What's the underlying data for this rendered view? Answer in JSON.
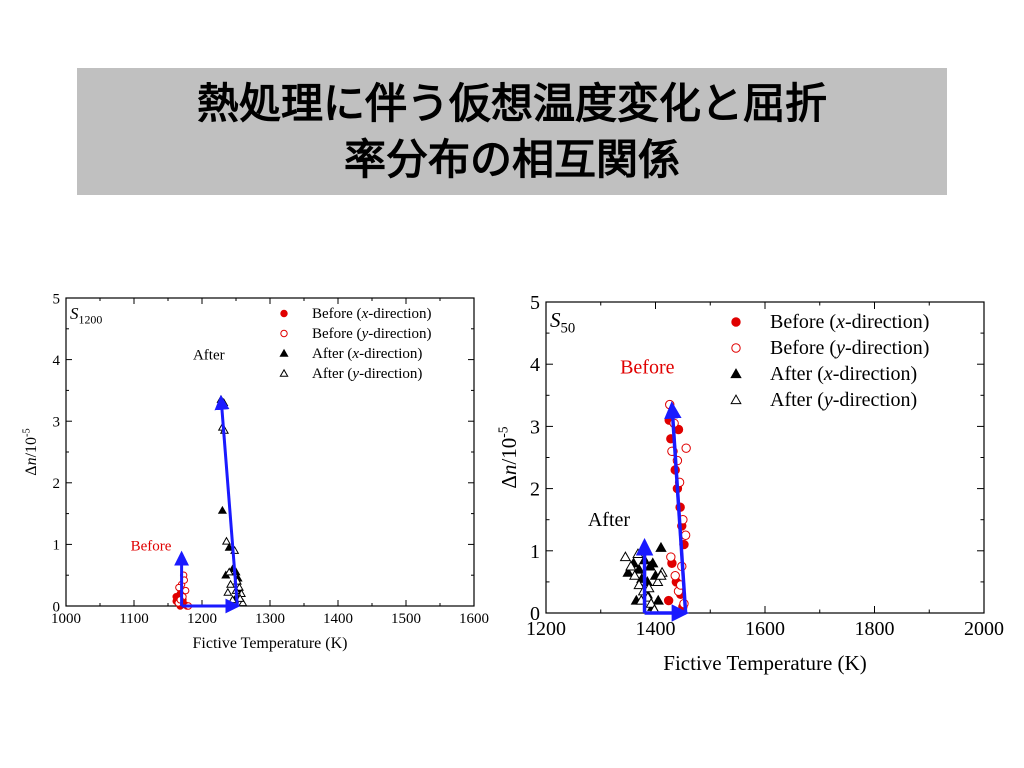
{
  "slide": {
    "title": "熱処理に伴う仮想温度変化と屈折\n率分布の相互関係"
  },
  "colors": {
    "before": "#e00000",
    "after": "#000000",
    "arrow": "#1a1aff",
    "title_bg": "#c0c0c0"
  },
  "chart_data": [
    {
      "type": "scatter",
      "panel_label": "S",
      "panel_label_sub": "1200",
      "xlabel": "Fictive Temperature (K)",
      "ylabel_prefix": "Δ",
      "ylabel_var": "n",
      "ylabel_unit": "/10",
      "ylabel_exp": "-5",
      "xlim": [
        1000,
        1600
      ],
      "ylim": [
        0,
        5
      ],
      "xticks": [
        1000,
        1100,
        1200,
        1300,
        1400,
        1500,
        1600
      ],
      "yticks": [
        0,
        1,
        2,
        3,
        4,
        5
      ],
      "legend_position": "top-right",
      "annotations": [
        {
          "text": "After",
          "x": 1210,
          "y": 4.0,
          "color": "after"
        },
        {
          "text": "Before",
          "x": 1125,
          "y": 0.9,
          "color": "before"
        }
      ],
      "arrows": [
        {
          "from": [
            1170,
            0.0
          ],
          "to": [
            1170,
            0.85
          ]
        },
        {
          "from": [
            1170,
            0.0
          ],
          "to": [
            1252,
            0.0
          ]
        },
        {
          "from": [
            1252,
            0.0
          ],
          "to": [
            1228,
            3.38
          ]
        }
      ],
      "series": [
        {
          "name_pre": "Before (",
          "name_var": "x",
          "name_post": "-direction)",
          "marker": "filled-circle",
          "color": "before",
          "x": [
            1162,
            1165,
            1168,
            1172,
            1175,
            1168,
            1178,
            1162,
            1170
          ],
          "y": [
            0.15,
            0.05,
            0.0,
            0.1,
            0.02,
            0.2,
            0.0,
            0.08,
            0.12
          ]
        },
        {
          "name_pre": "Before (",
          "name_var": "y",
          "name_post": "-direction)",
          "marker": "open-circle",
          "color": "before",
          "x": [
            1165,
            1170,
            1173,
            1176,
            1172,
            1168,
            1180,
            1174,
            1166
          ],
          "y": [
            0.05,
            0.35,
            0.5,
            0.25,
            0.15,
            0.1,
            0.0,
            0.42,
            0.3
          ]
        },
        {
          "name_pre": "After (",
          "name_var": "x",
          "name_post": "-direction)",
          "marker": "filled-triangle",
          "color": "after",
          "x": [
            1228,
            1232,
            1230,
            1240,
            1245,
            1250,
            1253,
            1235,
            1255,
            1248,
            1243
          ],
          "y": [
            3.35,
            3.3,
            1.55,
            0.95,
            0.6,
            0.55,
            0.45,
            0.5,
            0.25,
            0.1,
            0.05
          ]
        },
        {
          "name_pre": "After (",
          "name_var": "y",
          "name_post": "-direction)",
          "marker": "open-triangle",
          "color": "after",
          "x": [
            1230,
            1233,
            1236,
            1240,
            1248,
            1252,
            1255,
            1258,
            1260,
            1245,
            1250,
            1256,
            1242,
            1238
          ],
          "y": [
            2.9,
            2.85,
            1.05,
            0.55,
            0.9,
            0.4,
            0.3,
            0.2,
            0.05,
            0.1,
            0.25,
            0.12,
            0.35,
            0.22
          ]
        }
      ]
    },
    {
      "type": "scatter",
      "panel_label": "S",
      "panel_label_sub": "50",
      "xlabel": "Fictive Temperature (K)",
      "ylabel_prefix": "Δ",
      "ylabel_var": "n",
      "ylabel_unit": "/10",
      "ylabel_exp": "-5",
      "xlim": [
        1200,
        2000
      ],
      "ylim": [
        0,
        5
      ],
      "xticks": [
        1200,
        1400,
        1600,
        1800,
        2000
      ],
      "yticks": [
        0,
        1,
        2,
        3,
        4,
        5
      ],
      "legend_position": "top-right",
      "annotations": [
        {
          "text": "Before",
          "x": 1385,
          "y": 3.85,
          "color": "before"
        },
        {
          "text": "After",
          "x": 1315,
          "y": 1.4,
          "color": "after"
        }
      ],
      "arrows": [
        {
          "from": [
            1380,
            0.0
          ],
          "to": [
            1380,
            1.15
          ]
        },
        {
          "from": [
            1380,
            0.0
          ],
          "to": [
            1455,
            0.0
          ]
        },
        {
          "from": [
            1455,
            0.0
          ],
          "to": [
            1430,
            3.35
          ]
        }
      ],
      "series": [
        {
          "name_pre": "Before (",
          "name_var": "x",
          "name_post": "-direction)",
          "marker": "filled-circle",
          "color": "before",
          "x": [
            1425,
            1428,
            1432,
            1436,
            1440,
            1445,
            1448,
            1452,
            1430,
            1438,
            1446,
            1424,
            1442,
            1450
          ],
          "y": [
            3.1,
            2.8,
            2.6,
            2.3,
            2.0,
            1.7,
            1.4,
            1.1,
            0.8,
            0.5,
            0.3,
            0.2,
            2.95,
            0.1
          ]
        },
        {
          "name_pre": "Before (",
          "name_var": "y",
          "name_post": "-direction)",
          "marker": "open-circle",
          "color": "before",
          "x": [
            1426,
            1434,
            1440,
            1444,
            1450,
            1455,
            1428,
            1436,
            1442,
            1452,
            1430,
            1448,
            1446,
            1456
          ],
          "y": [
            3.35,
            3.05,
            2.45,
            2.1,
            1.5,
            1.25,
            0.9,
            0.6,
            0.35,
            0.15,
            2.6,
            0.75,
            0.45,
            2.65
          ]
        },
        {
          "name_pre": "After (",
          "name_var": "x",
          "name_post": "-direction)",
          "marker": "filled-triangle",
          "color": "after",
          "x": [
            1350,
            1360,
            1370,
            1375,
            1380,
            1385,
            1390,
            1395,
            1400,
            1405,
            1410,
            1365,
            1385,
            1395
          ],
          "y": [
            0.65,
            0.8,
            0.7,
            0.55,
            0.85,
            0.3,
            0.75,
            0.1,
            0.6,
            0.2,
            1.05,
            0.2,
            0.5,
            0.8
          ]
        },
        {
          "name_pre": "After (",
          "name_var": "y",
          "name_post": "-direction)",
          "marker": "open-triangle",
          "color": "after",
          "x": [
            1345,
            1355,
            1362,
            1370,
            1378,
            1386,
            1392,
            1398,
            1404,
            1412,
            1368,
            1388,
            1410,
            1374
          ],
          "y": [
            0.9,
            0.75,
            0.6,
            0.45,
            0.35,
            0.25,
            0.15,
            0.05,
            0.5,
            0.65,
            0.95,
            0.4,
            0.6,
            0.2
          ]
        }
      ]
    }
  ]
}
